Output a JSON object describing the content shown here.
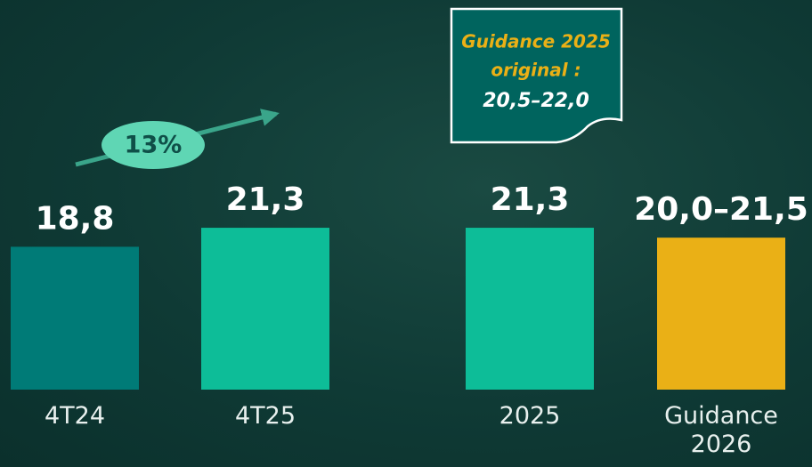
{
  "chart_data": {
    "type": "bar",
    "categories": [
      "4T24",
      "4T25",
      "2025",
      "Guidance 2026"
    ],
    "values": [
      18.8,
      21.3,
      21.3,
      null
    ],
    "value_labels": [
      "18,8",
      "21,3",
      "21,3",
      null
    ],
    "colors": [
      "#007b77",
      "#0dbd98",
      "#0dbd98",
      "#eab016"
    ],
    "guidance": {
      "low": 20.0,
      "high": 21.5,
      "label": "20,0–21,5",
      "color": "#eab016"
    },
    "ylim": [
      0,
      24
    ],
    "growth_label": "13%",
    "callout": [
      "Guidance 2025",
      "original :",
      "20,5–22,0"
    ]
  }
}
